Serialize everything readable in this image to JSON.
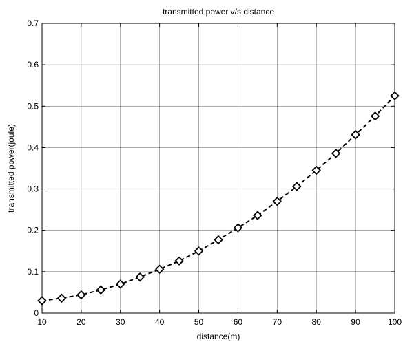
{
  "chart_data": {
    "type": "line",
    "title": "transmitted power v/s distance",
    "xlabel": "distance(m)",
    "ylabel": "transmitted power(joule)",
    "xlim": [
      10,
      100
    ],
    "ylim": [
      0,
      0.7
    ],
    "xticks": [
      10,
      20,
      30,
      40,
      50,
      60,
      70,
      80,
      90,
      100
    ],
    "xtick_labels": [
      "10",
      "20",
      "30",
      "40",
      "50",
      "60",
      "70",
      "80",
      "90",
      "100"
    ],
    "yticks": [
      0,
      0.1,
      0.2,
      0.3,
      0.4,
      0.5,
      0.6,
      0.7
    ],
    "ytick_labels": [
      "0",
      "0.1",
      "0.2",
      "0.3",
      "0.4",
      "0.5",
      "0.6",
      "0.7"
    ],
    "grid": true,
    "series": [
      {
        "line_style": "dashed",
        "marker": "diamond",
        "color": "#000000",
        "x": [
          10,
          15,
          20,
          25,
          30,
          35,
          40,
          45,
          50,
          55,
          60,
          65,
          70,
          75,
          80,
          85,
          90,
          95,
          100
        ],
        "y": [
          0.03,
          0.036,
          0.044,
          0.056,
          0.07,
          0.087,
          0.106,
          0.126,
          0.15,
          0.177,
          0.206,
          0.236,
          0.27,
          0.306,
          0.345,
          0.386,
          0.431,
          0.476,
          0.525
        ]
      }
    ]
  }
}
